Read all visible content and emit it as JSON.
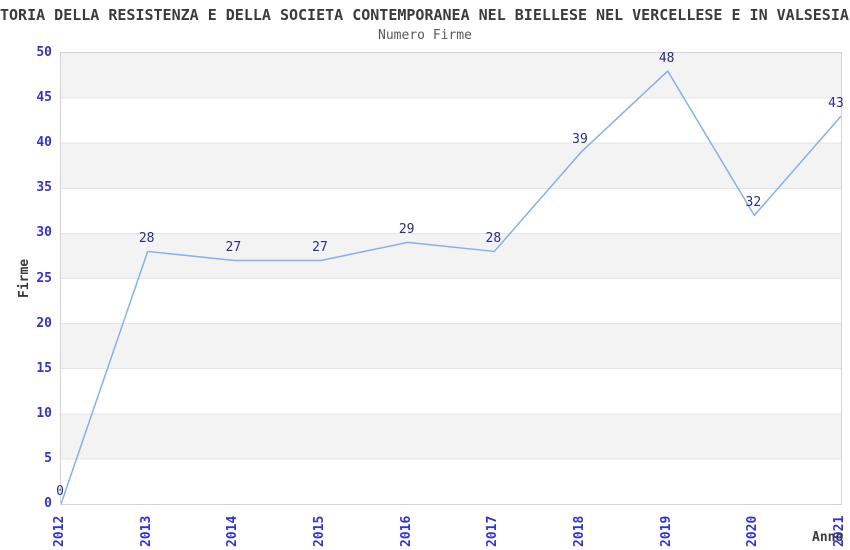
{
  "chart_data": {
    "type": "line",
    "title": "TORIA DELLA RESISTENZA E DELLA SOCIETA CONTEMPORANEA NEL BIELLESE NEL VERCELLESE E IN VALSESIA",
    "subtitle": "Numero Firme",
    "xlabel": "Anno",
    "ylabel": "Firme",
    "categories": [
      "2012",
      "2013",
      "2014",
      "2015",
      "2016",
      "2017",
      "2018",
      "2019",
      "2020",
      "2021"
    ],
    "values": [
      0,
      28,
      27,
      27,
      29,
      28,
      39,
      48,
      32,
      43
    ],
    "data_labels": [
      "0",
      "28",
      "27",
      "27",
      "29",
      "28",
      "39",
      "48",
      "32",
      "43"
    ],
    "ytick_labels": [
      "0",
      "5",
      "10",
      "15",
      "20",
      "25",
      "30",
      "35",
      "40",
      "45",
      "50"
    ],
    "ylim": [
      0,
      50
    ],
    "ytick_step": 5,
    "grid": "horizontal-bands-every-5",
    "legend": "none",
    "colors": {
      "line": "#82b1ec",
      "tick_label": "#3333cc",
      "data_label": "#2b2b8c",
      "band_gray": "#f3f3f3",
      "gridline": "#e6e6e6",
      "plot_border": "#d4d4d4",
      "title_text": "#3b3b3b",
      "subtitle_text": "#595959",
      "background": "#ffffff"
    }
  }
}
